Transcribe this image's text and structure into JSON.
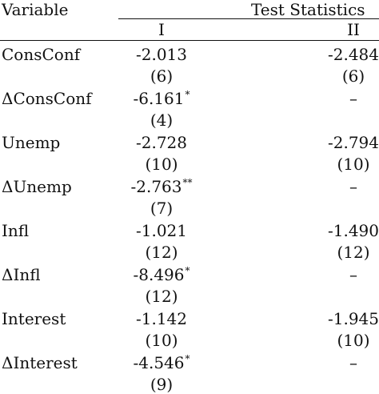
{
  "table": {
    "header": {
      "variable": "Variable",
      "test_statistics": "Test Statistics",
      "col_i": "I",
      "col_ii": "II"
    },
    "rows": [
      {
        "label": "ConsConf",
        "i_value": "-2.013",
        "i_stars": "",
        "i_lag": "(6)",
        "ii_value": "-2.484",
        "ii_lag": "(6)"
      },
      {
        "label": "ΔConsConf",
        "i_value": "-6.161",
        "i_stars": "*",
        "i_lag": "(4)",
        "ii_value": "–",
        "ii_lag": ""
      },
      {
        "label": "Unemp",
        "i_value": "-2.728",
        "i_stars": "",
        "i_lag": "(10)",
        "ii_value": "-2.794",
        "ii_lag": "(10)"
      },
      {
        "label": "ΔUnemp",
        "i_value": "-2.763",
        "i_stars": "**",
        "i_lag": "(7)",
        "ii_value": "–",
        "ii_lag": ""
      },
      {
        "label": "Infl",
        "i_value": "-1.021",
        "i_stars": "",
        "i_lag": "(12)",
        "ii_value": "-1.490",
        "ii_lag": "(12)"
      },
      {
        "label": "ΔInfl",
        "i_value": "-8.496",
        "i_stars": "*",
        "i_lag": "(12)",
        "ii_value": "–",
        "ii_lag": ""
      },
      {
        "label": "Interest",
        "i_value": "-1.142",
        "i_stars": "",
        "i_lag": "(10)",
        "ii_value": "-1.945",
        "ii_lag": "(10)"
      },
      {
        "label": "ΔInterest",
        "i_value": "-4.546",
        "i_stars": "*",
        "i_lag": "(9)",
        "ii_value": "–",
        "ii_lag": ""
      }
    ]
  }
}
